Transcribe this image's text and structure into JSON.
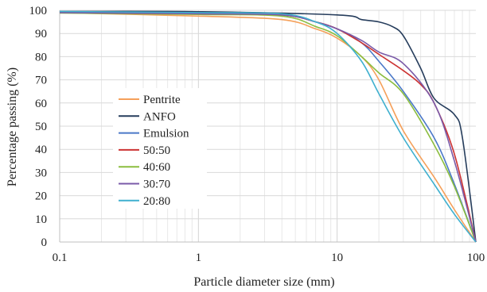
{
  "chart_data": {
    "type": "line",
    "xlabel": "Particle diameter size (mm)",
    "ylabel": "Percentage passing (%)",
    "x_scale": "log",
    "xlim": [
      0.1,
      100
    ],
    "ylim": [
      0,
      100
    ],
    "x_ticks": [
      "0.1",
      "1",
      "10",
      "100"
    ],
    "y_ticks": [
      "0",
      "10",
      "20",
      "30",
      "40",
      "50",
      "60",
      "70",
      "80",
      "90",
      "100"
    ],
    "grid": true,
    "legend_position": "left",
    "series": [
      {
        "name": "Pentrite",
        "color": "#f5a05a",
        "x": [
          0.1,
          1,
          4,
          7,
          10,
          15,
          20,
          30,
          50,
          70,
          100
        ],
        "y": [
          99,
          97.5,
          96,
          92,
          88,
          80,
          70,
          48,
          28,
          14,
          0
        ]
      },
      {
        "name": "ANFO",
        "color": "#263d5c",
        "x": [
          0.1,
          1,
          10,
          15,
          20,
          25,
          30,
          40,
          50,
          70,
          80,
          100
        ],
        "y": [
          99.5,
          99.4,
          98,
          96,
          95,
          93,
          89,
          75,
          62,
          55,
          45,
          0
        ]
      },
      {
        "name": "Emulsion",
        "color": "#4a78c8",
        "x": [
          0.1,
          1,
          4,
          7,
          10,
          15,
          20,
          30,
          50,
          70,
          100
        ],
        "y": [
          99.2,
          98.5,
          98,
          95,
          92,
          86,
          78,
          65,
          45,
          25,
          0
        ]
      },
      {
        "name": "50:50",
        "color": "#cc3333",
        "x": [
          0.1,
          1,
          4,
          7,
          10,
          15,
          20,
          30,
          40,
          50,
          70,
          100
        ],
        "y": [
          99,
          98.5,
          98,
          95,
          92,
          86,
          81,
          74,
          68,
          60,
          38,
          0
        ]
      },
      {
        "name": "40:60",
        "color": "#8bbd3f",
        "x": [
          0.1,
          1,
          4,
          7,
          10,
          15,
          20,
          30,
          50,
          70,
          100
        ],
        "y": [
          98.8,
          98.2,
          97.5,
          93,
          89,
          80,
          73,
          64,
          42,
          24,
          0
        ]
      },
      {
        "name": "30:70",
        "color": "#7a5aa8",
        "x": [
          0.1,
          1,
          4,
          7,
          10,
          15,
          20,
          30,
          50,
          70,
          100
        ],
        "y": [
          99,
          98.5,
          98,
          95,
          92,
          87,
          82,
          77,
          60,
          35,
          0
        ]
      },
      {
        "name": "20:80",
        "color": "#3fb0cf",
        "x": [
          0.1,
          1,
          4,
          7,
          10,
          15,
          20,
          30,
          50,
          70,
          100
        ],
        "y": [
          99.5,
          99,
          98.5,
          95,
          90,
          78,
          64,
          45,
          25,
          12,
          0
        ]
      }
    ]
  }
}
